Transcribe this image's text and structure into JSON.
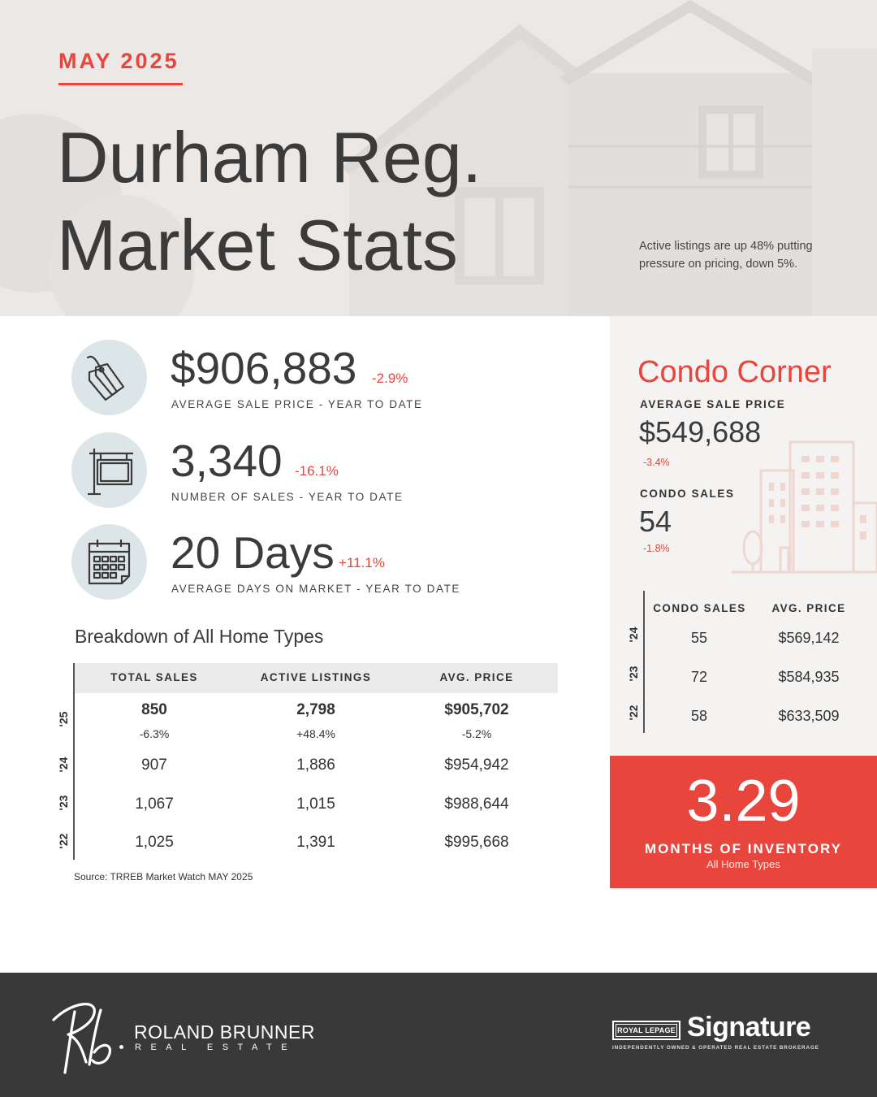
{
  "header": {
    "month": "MAY 2025",
    "title_line1": "Durham Reg.",
    "title_line2": "Market Stats",
    "note": "Active listings are up 48% putting pressure on pricing, down 5%."
  },
  "kpis": [
    {
      "icon": "price-tag-icon",
      "value": "$906,883",
      "change": "-2.9%",
      "label": "AVERAGE SALE PRICE - YEAR TO DATE"
    },
    {
      "icon": "for-sale-sign-icon",
      "value": "3,340",
      "change": "-16.1%",
      "label": "NUMBER OF SALES - YEAR TO DATE"
    },
    {
      "icon": "calendar-icon",
      "value": "20 Days",
      "change": "+11.1%",
      "label": "AVERAGE DAYS ON MARKET - YEAR TO DATE"
    }
  ],
  "breakdown": {
    "title": "Breakdown of All Home Types",
    "headers": [
      "TOTAL SALES",
      "ACTIVE LISTINGS",
      "AVG. PRICE"
    ],
    "rows": [
      {
        "year": "'25",
        "values": [
          "850",
          "2,798",
          "$905,702"
        ],
        "changes": [
          "-6.3%",
          "+48.4%",
          "-5.2%"
        ]
      },
      {
        "year": "'24",
        "values": [
          "907",
          "1,886",
          "$954,942"
        ]
      },
      {
        "year": "'23",
        "values": [
          "1,067",
          "1,015",
          "$988,644"
        ]
      },
      {
        "year": "'22",
        "values": [
          "1,025",
          "1,391",
          "$995,668"
        ]
      }
    ],
    "source": "Source: TRREB Market Watch MAY 2025"
  },
  "condo": {
    "title": "Condo Corner",
    "avg_price_label": "AVERAGE SALE PRICE",
    "avg_price": "$549,688",
    "avg_price_change": "-3.4%",
    "sales_label": "CONDO SALES",
    "sales": "54",
    "sales_change": "-1.8%",
    "table_headers": [
      "CONDO SALES",
      "AVG. PRICE"
    ],
    "rows": [
      {
        "year": "'24",
        "sales": "55",
        "price": "$569,142"
      },
      {
        "year": "'23",
        "sales": "72",
        "price": "$584,935"
      },
      {
        "year": "'22",
        "sales": "58",
        "price": "$633,509"
      }
    ]
  },
  "inventory": {
    "value": "3.29",
    "label": "MONTHS OF INVENTORY",
    "sublabel": "All Home Types"
  },
  "footer": {
    "agent_initials": "Rb",
    "agent_name": "ROLAND BRUNNER",
    "agent_sub": "REAL ESTATE",
    "brand_box": "ROYAL LEPAGE",
    "brand_name": "Signature",
    "brand_tagline": "INDEPENDENTLY OWNED & OPERATED REAL ESTATE BROKERAGE"
  },
  "colors": {
    "accent": "#e8453c",
    "footer": "#3a3939",
    "icon_bg": "#dce6e9",
    "condo_bg": "#f4f3f2"
  }
}
